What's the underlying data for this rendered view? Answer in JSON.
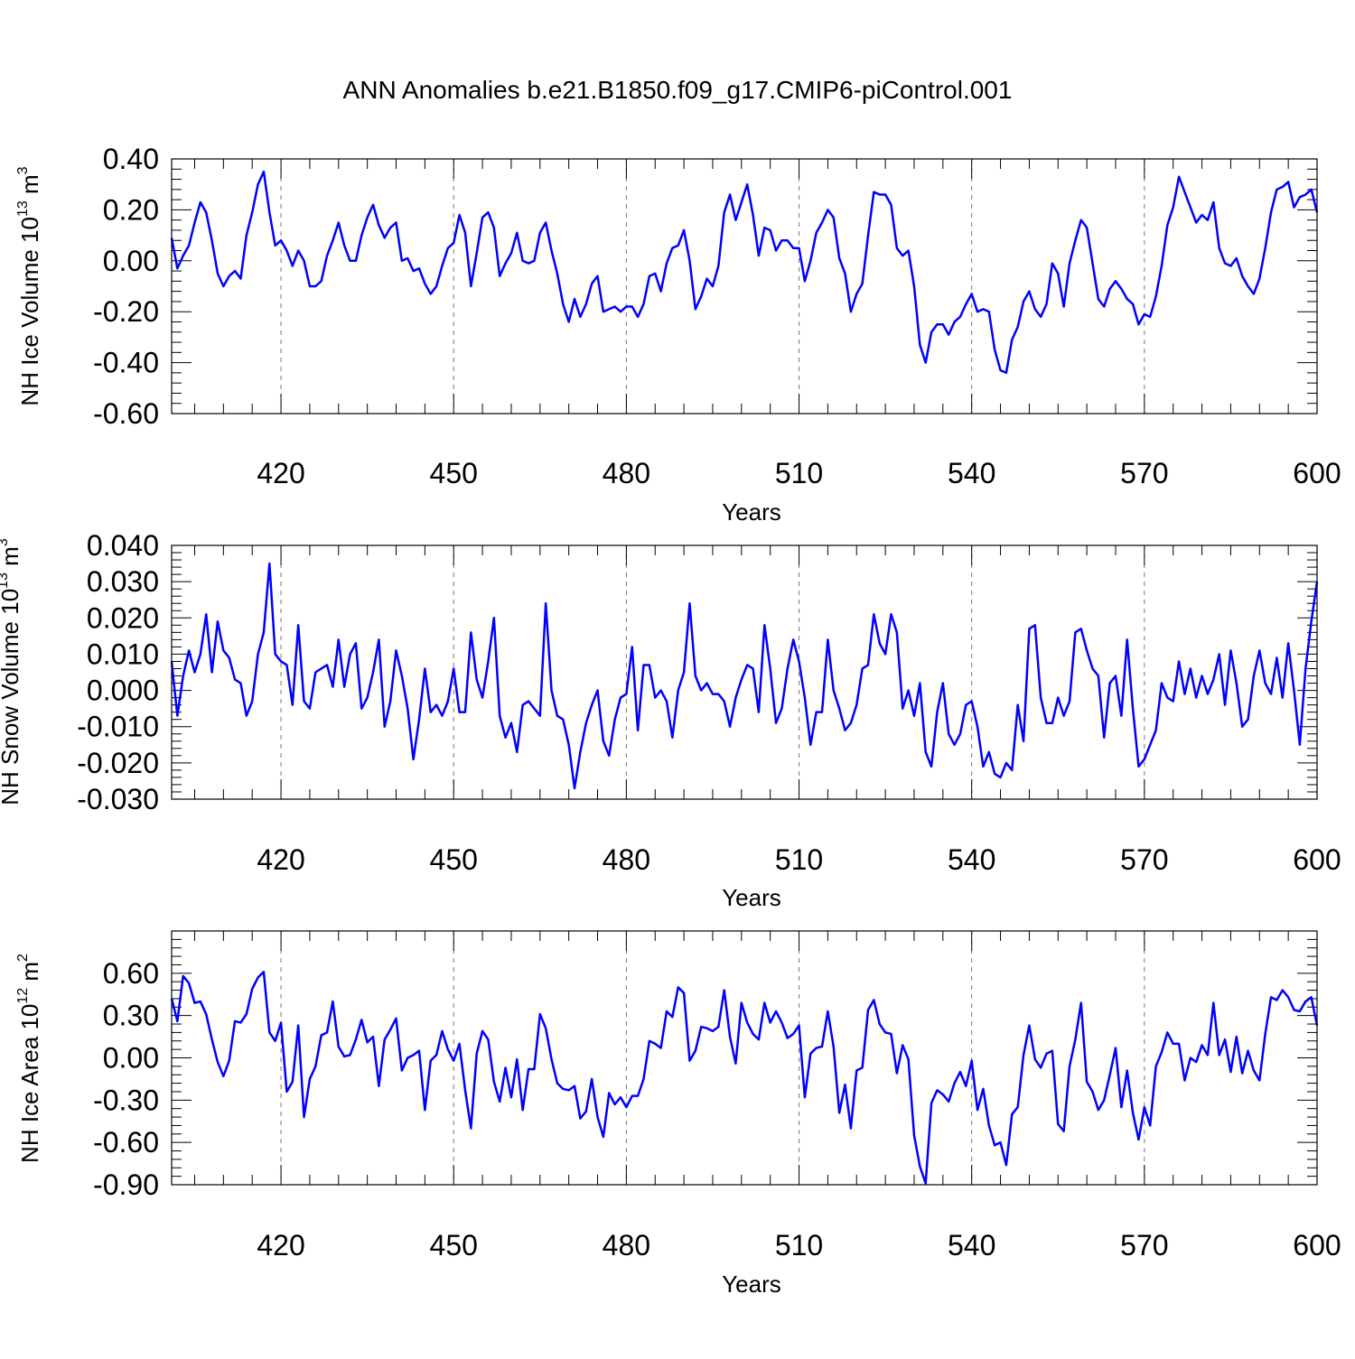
{
  "title": "ANN Anomalies b.e21.B1850.f09_g17.CMIP6-piControl.001",
  "chart_data": [
    {
      "type": "line",
      "title": "",
      "xlabel": "Years",
      "ylabel": "NH Ice Volume 10",
      "ylabel_exp": "13",
      "ylabel_unit": " m",
      "ylabel_unit_exp": "3",
      "xlim": [
        401,
        600
      ],
      "ylim": [
        -0.6,
        0.4
      ],
      "yticks": [
        "0.40",
        "0.20",
        "0.00",
        "-0.20",
        "-0.40",
        "-0.60"
      ],
      "yticks_values": [
        0.4,
        0.2,
        0.0,
        -0.2,
        -0.4,
        -0.6
      ],
      "xticks": [
        "420",
        "450",
        "480",
        "510",
        "540",
        "570",
        "600"
      ],
      "xticks_values": [
        420,
        450,
        480,
        510,
        540,
        570,
        600
      ],
      "grid": "vertical dashed at major x ticks",
      "line_color": "#0000ff",
      "x_start": 401,
      "values": [
        0.09,
        -0.03,
        0.02,
        0.06,
        0.15,
        0.23,
        0.19,
        0.08,
        -0.05,
        -0.1,
        -0.06,
        -0.04,
        -0.07,
        0.1,
        0.19,
        0.3,
        0.35,
        0.19,
        0.06,
        0.08,
        0.04,
        -0.02,
        0.04,
        0.0,
        -0.1,
        -0.1,
        -0.08,
        0.02,
        0.08,
        0.15,
        0.06,
        0.0,
        0.0,
        0.1,
        0.17,
        0.22,
        0.14,
        0.09,
        0.13,
        0.15,
        0.0,
        0.01,
        -0.04,
        -0.03,
        -0.09,
        -0.13,
        -0.1,
        -0.02,
        0.05,
        0.07,
        0.18,
        0.11,
        -0.1,
        0.03,
        0.17,
        0.19,
        0.13,
        -0.06,
        -0.01,
        0.03,
        0.11,
        0.0,
        -0.01,
        0.0,
        0.11,
        0.15,
        0.04,
        -0.05,
        -0.17,
        -0.24,
        -0.15,
        -0.22,
        -0.17,
        -0.09,
        -0.06,
        -0.2,
        -0.19,
        -0.18,
        -0.2,
        -0.18,
        -0.18,
        -0.22,
        -0.17,
        -0.06,
        -0.05,
        -0.12,
        -0.01,
        0.05,
        0.06,
        0.12,
        0.0,
        -0.19,
        -0.14,
        -0.07,
        -0.1,
        -0.02,
        0.19,
        0.26,
        0.16,
        0.23,
        0.3,
        0.18,
        0.02,
        0.13,
        0.12,
        0.04,
        0.08,
        0.08,
        0.05,
        0.05,
        -0.08,
        0.0,
        0.11,
        0.15,
        0.2,
        0.17,
        0.01,
        -0.05,
        -0.2,
        -0.13,
        -0.09,
        0.1,
        0.27,
        0.26,
        0.26,
        0.22,
        0.05,
        0.02,
        0.04,
        -0.1,
        -0.33,
        -0.4,
        -0.28,
        -0.25,
        -0.25,
        -0.29,
        -0.24,
        -0.22,
        -0.17,
        -0.13,
        -0.2,
        -0.19,
        -0.2,
        -0.35,
        -0.43,
        -0.44,
        -0.31,
        -0.26,
        -0.16,
        -0.12,
        -0.19,
        -0.22,
        -0.17,
        -0.01,
        -0.05,
        -0.18,
        -0.01,
        0.08,
        0.16,
        0.13,
        -0.01,
        -0.15,
        -0.18,
        -0.11,
        -0.08,
        -0.11,
        -0.15,
        -0.17,
        -0.25,
        -0.21,
        -0.22,
        -0.14,
        -0.02,
        0.14,
        0.21,
        0.33,
        0.27,
        0.21,
        0.15,
        0.18,
        0.16,
        0.23,
        0.05,
        -0.01,
        -0.02,
        0.01,
        -0.06,
        -0.1,
        -0.13,
        -0.07,
        0.05,
        0.19,
        0.28,
        0.29,
        0.31,
        0.21,
        0.25,
        0.26,
        0.28,
        0.19
      ]
    },
    {
      "type": "line",
      "title": "",
      "xlabel": "Years",
      "ylabel": "NH Snow Volume 10",
      "ylabel_exp": "13",
      "ylabel_unit": " m",
      "ylabel_unit_exp": "3",
      "xlim": [
        401,
        600
      ],
      "ylim": [
        -0.03,
        0.04
      ],
      "yticks": [
        "0.040",
        "0.030",
        "0.020",
        "0.010",
        "0.000",
        "-0.010",
        "-0.020",
        "-0.030"
      ],
      "yticks_values": [
        0.04,
        0.03,
        0.02,
        0.01,
        0.0,
        -0.01,
        -0.02,
        -0.03
      ],
      "xticks": [
        "420",
        "450",
        "480",
        "510",
        "540",
        "570",
        "600"
      ],
      "xticks_values": [
        420,
        450,
        480,
        510,
        540,
        570,
        600
      ],
      "grid": "vertical dashed at major x ticks",
      "line_color": "#0000ff",
      "x_start": 401,
      "values": [
        0.008,
        -0.007,
        0.004,
        0.011,
        0.005,
        0.01,
        0.021,
        0.005,
        0.019,
        0.011,
        0.009,
        0.003,
        0.002,
        -0.007,
        -0.003,
        0.01,
        0.016,
        0.035,
        0.01,
        0.008,
        0.007,
        -0.004,
        0.018,
        -0.003,
        -0.005,
        0.005,
        0.006,
        0.007,
        0.001,
        0.014,
        0.001,
        0.01,
        0.013,
        -0.005,
        -0.002,
        0.005,
        0.014,
        -0.01,
        -0.003,
        0.011,
        0.004,
        -0.005,
        -0.019,
        -0.008,
        0.006,
        -0.006,
        -0.004,
        -0.007,
        -0.003,
        0.006,
        -0.006,
        -0.006,
        0.016,
        0.003,
        -0.002,
        0.008,
        0.02,
        -0.007,
        -0.013,
        -0.009,
        -0.017,
        -0.004,
        -0.003,
        -0.005,
        -0.007,
        0.024,
        0.0,
        -0.007,
        -0.008,
        -0.015,
        -0.027,
        -0.017,
        -0.009,
        -0.004,
        0.0,
        -0.014,
        -0.018,
        -0.008,
        -0.002,
        -0.001,
        0.012,
        -0.011,
        0.007,
        0.007,
        -0.002,
        0.0,
        -0.003,
        -0.013,
        0.0,
        0.005,
        0.024,
        0.004,
        0.0,
        0.002,
        -0.001,
        -0.001,
        -0.003,
        -0.01,
        -0.002,
        0.003,
        0.007,
        0.006,
        -0.006,
        0.018,
        0.006,
        -0.009,
        -0.005,
        0.006,
        0.014,
        0.008,
        -0.002,
        -0.015,
        -0.006,
        -0.006,
        0.014,
        0.0,
        -0.005,
        -0.011,
        -0.009,
        -0.004,
        0.006,
        0.007,
        0.021,
        0.013,
        0.01,
        0.021,
        0.016,
        -0.005,
        0.0,
        -0.007,
        0.002,
        -0.017,
        -0.021,
        -0.006,
        0.002,
        -0.012,
        -0.015,
        -0.012,
        -0.004,
        -0.003,
        -0.01,
        -0.021,
        -0.017,
        -0.023,
        -0.024,
        -0.02,
        -0.022,
        -0.004,
        -0.014,
        0.017,
        0.018,
        -0.002,
        -0.009,
        -0.009,
        -0.002,
        -0.007,
        -0.003,
        0.016,
        0.017,
        0.011,
        0.006,
        0.004,
        -0.013,
        0.002,
        0.004,
        -0.007,
        0.014,
        -0.005,
        -0.021,
        -0.019,
        -0.015,
        -0.011,
        0.002,
        -0.002,
        -0.003,
        0.008,
        -0.001,
        0.006,
        -0.002,
        0.004,
        -0.001,
        0.003,
        0.01,
        -0.004,
        0.011,
        0.002,
        -0.01,
        -0.008,
        0.004,
        0.011,
        0.002,
        -0.001,
        0.009,
        -0.002,
        0.013,
        0.0,
        -0.015,
        0.006,
        0.019,
        0.03
      ]
    },
    {
      "type": "line",
      "title": "",
      "xlabel": "Years",
      "ylabel": "NH Ice Area 10",
      "ylabel_exp": "12",
      "ylabel_unit": " m",
      "ylabel_unit_exp": "2",
      "xlim": [
        401,
        600
      ],
      "ylim": [
        -0.9,
        0.9
      ],
      "yticks": [
        "0.60",
        "0.30",
        "0.00",
        "-0.30",
        "-0.60",
        "-0.90"
      ],
      "yticks_values": [
        0.6,
        0.3,
        0.0,
        -0.3,
        -0.6,
        -0.9
      ],
      "xticks": [
        "420",
        "450",
        "480",
        "510",
        "540",
        "570",
        "600"
      ],
      "xticks_values": [
        420,
        450,
        480,
        510,
        540,
        570,
        600
      ],
      "grid": "vertical dashed at major x ticks",
      "line_color": "#0000ff",
      "x_start": 401,
      "values": [
        0.42,
        0.26,
        0.58,
        0.53,
        0.39,
        0.4,
        0.31,
        0.13,
        -0.03,
        -0.13,
        -0.02,
        0.26,
        0.25,
        0.31,
        0.49,
        0.57,
        0.61,
        0.18,
        0.12,
        0.25,
        -0.24,
        -0.17,
        0.23,
        -0.42,
        -0.15,
        -0.06,
        0.16,
        0.18,
        0.4,
        0.08,
        0.01,
        0.02,
        0.13,
        0.27,
        0.11,
        0.15,
        -0.2,
        0.13,
        0.2,
        0.28,
        -0.09,
        0.0,
        0.02,
        0.05,
        -0.37,
        -0.02,
        0.02,
        0.19,
        0.06,
        -0.02,
        0.1,
        -0.23,
        -0.5,
        0.03,
        0.19,
        0.13,
        -0.17,
        -0.31,
        -0.07,
        -0.28,
        -0.01,
        -0.37,
        -0.08,
        -0.08,
        0.31,
        0.21,
        -0.01,
        -0.18,
        -0.22,
        -0.23,
        -0.2,
        -0.43,
        -0.38,
        -0.15,
        -0.42,
        -0.56,
        -0.25,
        -0.33,
        -0.28,
        -0.35,
        -0.27,
        -0.27,
        -0.15,
        0.12,
        0.1,
        0.07,
        0.33,
        0.29,
        0.5,
        0.46,
        -0.02,
        0.05,
        0.22,
        0.21,
        0.19,
        0.22,
        0.48,
        0.15,
        -0.04,
        0.39,
        0.25,
        0.17,
        0.13,
        0.39,
        0.25,
        0.33,
        0.25,
        0.14,
        0.17,
        0.23,
        -0.28,
        0.03,
        0.07,
        0.08,
        0.33,
        0.08,
        -0.39,
        -0.19,
        -0.5,
        -0.09,
        -0.07,
        0.34,
        0.41,
        0.24,
        0.18,
        0.17,
        -0.11,
        0.09,
        -0.01,
        -0.55,
        -0.77,
        -0.89,
        -0.32,
        -0.23,
        -0.26,
        -0.31,
        -0.18,
        -0.1,
        -0.2,
        -0.02,
        -0.37,
        -0.22,
        -0.48,
        -0.62,
        -0.6,
        -0.76,
        -0.4,
        -0.35,
        0.02,
        0.23,
        -0.01,
        -0.07,
        0.03,
        0.05,
        -0.47,
        -0.52,
        -0.06,
        0.13,
        0.39,
        -0.17,
        -0.24,
        -0.37,
        -0.3,
        -0.12,
        0.07,
        -0.35,
        -0.09,
        -0.39,
        -0.58,
        -0.35,
        -0.48,
        -0.06,
        0.04,
        0.18,
        0.1,
        0.1,
        -0.16,
        0.0,
        -0.03,
        0.09,
        0.02,
        0.39,
        0.02,
        0.13,
        -0.1,
        0.15,
        -0.11,
        0.05,
        -0.09,
        -0.16,
        0.17,
        0.43,
        0.41,
        0.48,
        0.43,
        0.34,
        0.33,
        0.4,
        0.43,
        0.23
      ]
    }
  ]
}
